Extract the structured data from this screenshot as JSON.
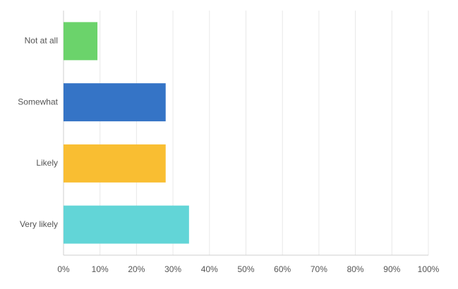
{
  "chart_data": {
    "type": "hbar",
    "categories": [
      "Not at all",
      "Somewhat",
      "Likely",
      "Very likely"
    ],
    "values": [
      9.3,
      28,
      28,
      34.4
    ],
    "colors": [
      "#6bd36b",
      "#3574c6",
      "#f9be32",
      "#62d5d7"
    ],
    "xlim": [
      0,
      100
    ],
    "xticks": [
      {
        "value": 0,
        "label": "0%"
      },
      {
        "value": 10,
        "label": "10%"
      },
      {
        "value": 20,
        "label": "20%"
      },
      {
        "value": 30,
        "label": "30%"
      },
      {
        "value": 40,
        "label": "40%"
      },
      {
        "value": 50,
        "label": "50%"
      },
      {
        "value": 60,
        "label": "60%"
      },
      {
        "value": 70,
        "label": "70%"
      },
      {
        "value": 80,
        "label": "80%"
      },
      {
        "value": 90,
        "label": "90%"
      },
      {
        "value": 100,
        "label": "100%"
      }
    ],
    "grid": true
  }
}
